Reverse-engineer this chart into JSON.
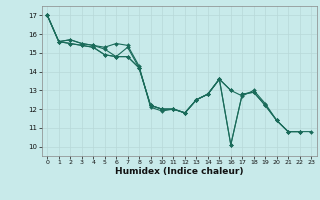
{
  "title": "",
  "xlabel": "Humidex (Indice chaleur)",
  "ylabel": "",
  "bg_color": "#c8eaea",
  "grid_color": "#b8d8d8",
  "line_color": "#1a6b5a",
  "marker_color": "#1a6b5a",
  "x_data": [
    0,
    1,
    2,
    3,
    4,
    5,
    6,
    7,
    8,
    9,
    10,
    11,
    12,
    13,
    14,
    15,
    16,
    17,
    18,
    19,
    20,
    21,
    22,
    23
  ],
  "series": [
    [
      17.0,
      15.6,
      15.7,
      15.5,
      15.4,
      15.3,
      15.5,
      15.4,
      14.3,
      12.1,
      11.9,
      12.0,
      11.8,
      12.5,
      12.8,
      13.6,
      13.0,
      null,
      null,
      null,
      null,
      null,
      null,
      null
    ],
    [
      17.0,
      15.6,
      15.7,
      15.5,
      15.4,
      15.2,
      14.8,
      15.3,
      14.2,
      12.2,
      12.0,
      12.0,
      11.8,
      12.5,
      12.8,
      13.6,
      13.0,
      12.7,
      13.0,
      12.3,
      11.4,
      10.8,
      10.8,
      null
    ],
    [
      17.0,
      15.6,
      15.5,
      15.4,
      15.3,
      14.9,
      14.8,
      14.8,
      14.2,
      12.2,
      12.0,
      12.0,
      11.8,
      12.5,
      12.8,
      13.6,
      10.1,
      12.8,
      12.9,
      12.2,
      11.4,
      10.8,
      10.8,
      null
    ],
    [
      17.0,
      15.6,
      15.5,
      15.4,
      15.3,
      14.9,
      14.8,
      14.8,
      14.2,
      12.2,
      12.0,
      12.0,
      11.8,
      12.5,
      12.8,
      13.6,
      10.1,
      12.8,
      12.9,
      12.2,
      11.4,
      10.8,
      10.8,
      10.8
    ]
  ],
  "xlim": [
    -0.5,
    23.5
  ],
  "ylim": [
    9.5,
    17.5
  ],
  "yticks": [
    10,
    11,
    12,
    13,
    14,
    15,
    16,
    17
  ],
  "xticks": [
    0,
    1,
    2,
    3,
    4,
    5,
    6,
    7,
    8,
    9,
    10,
    11,
    12,
    13,
    14,
    15,
    16,
    17,
    18,
    19,
    20,
    21,
    22,
    23
  ]
}
